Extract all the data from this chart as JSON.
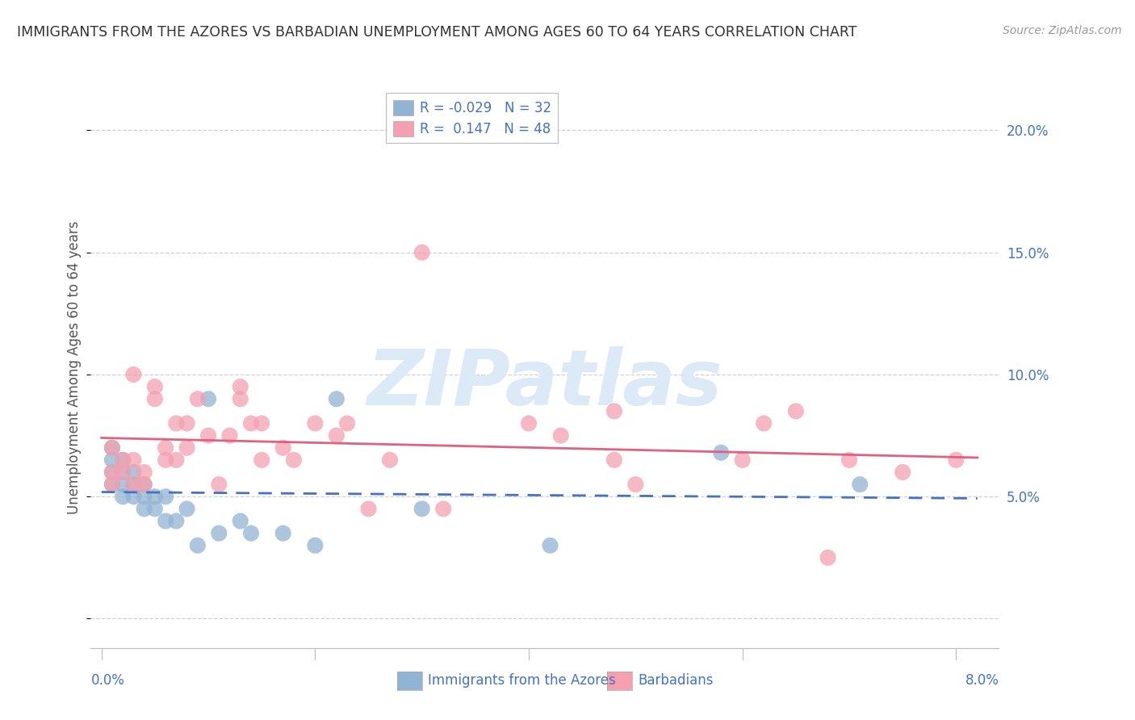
{
  "title": "IMMIGRANTS FROM THE AZORES VS BARBADIAN UNEMPLOYMENT AMONG AGES 60 TO 64 YEARS CORRELATION CHART",
  "source": "Source: ZipAtlas.com",
  "ylabel": "Unemployment Among Ages 60 to 64 years",
  "y_ticks": [
    0.0,
    0.05,
    0.1,
    0.15,
    0.2
  ],
  "y_tick_labels": [
    "",
    "5.0%",
    "10.0%",
    "15.0%",
    "20.0%"
  ],
  "xlim": [
    -0.001,
    0.084
  ],
  "ylim": [
    -0.012,
    0.218
  ],
  "legend_R1": "-0.029",
  "legend_N1": "32",
  "legend_R2": "0.147",
  "legend_N2": "48",
  "series1_color": "#92b4d4",
  "series2_color": "#f4a0b0",
  "trend1_color": "#4472c4",
  "trend2_color": "#e06080",
  "watermark": "ZIPatlas",
  "watermark_color": "#dce9f7",
  "label1": "Immigrants from the Azores",
  "label2": "Barbadians",
  "title_color": "#333333",
  "source_color": "#999999",
  "axis_color": "#4472c4",
  "ylabel_color": "#555555",
  "grid_color": "#d0d0d0",
  "blue_points_x": [
    0.001,
    0.001,
    0.001,
    0.001,
    0.002,
    0.002,
    0.002,
    0.002,
    0.003,
    0.003,
    0.003,
    0.004,
    0.004,
    0.004,
    0.005,
    0.005,
    0.006,
    0.006,
    0.007,
    0.008,
    0.009,
    0.01,
    0.011,
    0.013,
    0.014,
    0.017,
    0.02,
    0.022,
    0.03,
    0.042,
    0.058,
    0.071
  ],
  "blue_points_y": [
    0.055,
    0.06,
    0.065,
    0.07,
    0.05,
    0.055,
    0.06,
    0.065,
    0.05,
    0.055,
    0.06,
    0.045,
    0.05,
    0.055,
    0.045,
    0.05,
    0.04,
    0.05,
    0.04,
    0.045,
    0.03,
    0.09,
    0.035,
    0.04,
    0.035,
    0.035,
    0.03,
    0.09,
    0.045,
    0.03,
    0.068,
    0.055
  ],
  "pink_points_x": [
    0.001,
    0.001,
    0.001,
    0.002,
    0.002,
    0.003,
    0.003,
    0.003,
    0.004,
    0.004,
    0.005,
    0.005,
    0.006,
    0.006,
    0.007,
    0.007,
    0.008,
    0.008,
    0.009,
    0.01,
    0.011,
    0.012,
    0.013,
    0.013,
    0.014,
    0.015,
    0.015,
    0.017,
    0.018,
    0.02,
    0.022,
    0.023,
    0.025,
    0.027,
    0.03,
    0.032,
    0.04,
    0.043,
    0.048,
    0.048,
    0.05,
    0.06,
    0.062,
    0.065,
    0.068,
    0.07,
    0.075,
    0.08
  ],
  "pink_points_y": [
    0.055,
    0.06,
    0.07,
    0.06,
    0.065,
    0.055,
    0.065,
    0.1,
    0.055,
    0.06,
    0.09,
    0.095,
    0.065,
    0.07,
    0.065,
    0.08,
    0.07,
    0.08,
    0.09,
    0.075,
    0.055,
    0.075,
    0.09,
    0.095,
    0.08,
    0.065,
    0.08,
    0.07,
    0.065,
    0.08,
    0.075,
    0.08,
    0.045,
    0.065,
    0.15,
    0.045,
    0.08,
    0.075,
    0.065,
    0.085,
    0.055,
    0.065,
    0.08,
    0.085,
    0.025,
    0.065,
    0.06,
    0.065
  ]
}
